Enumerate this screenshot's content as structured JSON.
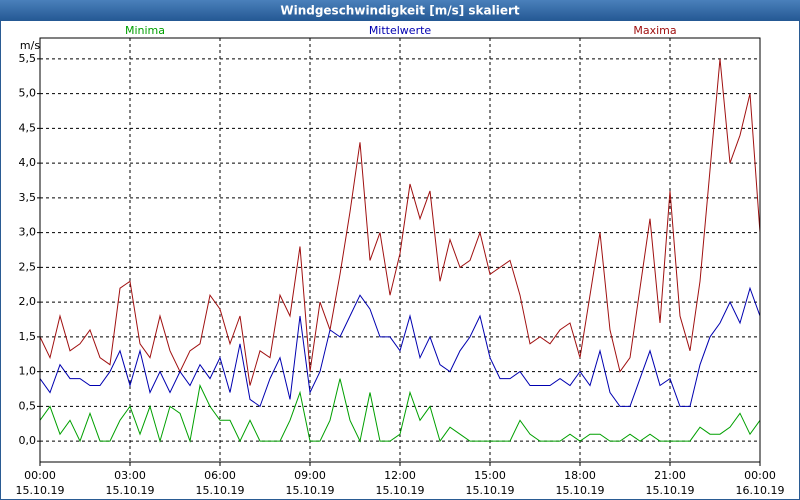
{
  "chart_data": {
    "type": "line",
    "title": "Windgeschwindigkeit [m/s] skaliert",
    "ylabel": "m/s",
    "x": [
      0,
      20,
      40,
      60,
      80,
      100,
      120,
      140,
      160,
      180,
      200,
      220,
      240,
      260,
      280,
      300,
      320,
      340,
      360,
      380,
      400,
      420,
      440,
      460,
      480,
      500,
      520,
      540,
      560,
      580,
      600,
      620,
      640,
      660,
      680,
      700,
      720,
      740,
      760,
      780,
      800,
      820,
      840,
      860,
      880,
      900,
      920,
      940,
      960,
      980,
      1000,
      1020,
      1040,
      1060,
      1080,
      1100,
      1120,
      1140,
      1160,
      1180,
      1200,
      1220,
      1240,
      1260,
      1280,
      1300,
      1320,
      1340,
      1360,
      1380,
      1400,
      1420,
      1440
    ],
    "series": [
      {
        "name": "Minima",
        "color": "#00a000",
        "values": [
          0.3,
          0.5,
          0.1,
          0.3,
          0.0,
          0.4,
          0.0,
          0.0,
          0.3,
          0.5,
          0.1,
          0.5,
          0.0,
          0.5,
          0.4,
          0.0,
          0.8,
          0.5,
          0.3,
          0.3,
          0.0,
          0.3,
          0.0,
          0.0,
          0.0,
          0.3,
          0.7,
          0.0,
          0.0,
          0.3,
          0.9,
          0.3,
          0.0,
          0.7,
          0.0,
          0.0,
          0.1,
          0.7,
          0.3,
          0.5,
          0.0,
          0.2,
          0.1,
          0.0,
          0.0,
          0.0,
          0.0,
          0.0,
          0.3,
          0.1,
          0.0,
          0.0,
          0.0,
          0.1,
          0.0,
          0.1,
          0.1,
          0.0,
          0.0,
          0.1,
          0.0,
          0.1,
          0.0,
          0.0,
          0.0,
          0.0,
          0.2,
          0.1,
          0.1,
          0.2,
          0.4,
          0.1,
          0.3
        ]
      },
      {
        "name": "Mittelwerte",
        "color": "#0000b0",
        "values": [
          0.9,
          0.7,
          1.1,
          0.9,
          0.9,
          0.8,
          0.8,
          1.0,
          1.3,
          0.8,
          1.3,
          0.7,
          1.0,
          0.7,
          1.0,
          0.8,
          1.1,
          0.9,
          1.2,
          0.7,
          1.4,
          0.6,
          0.5,
          0.9,
          1.2,
          0.6,
          1.8,
          0.7,
          1.0,
          1.6,
          1.5,
          1.8,
          2.1,
          1.9,
          1.5,
          1.5,
          1.3,
          1.8,
          1.2,
          1.5,
          1.1,
          1.0,
          1.3,
          1.5,
          1.8,
          1.2,
          0.9,
          0.9,
          1.0,
          0.8,
          0.8,
          0.8,
          0.9,
          0.8,
          1.0,
          0.8,
          1.3,
          0.7,
          0.5,
          0.5,
          0.9,
          1.3,
          0.8,
          0.9,
          0.5,
          0.5,
          1.1,
          1.5,
          1.7,
          2.0,
          1.7,
          2.2,
          1.8
        ]
      },
      {
        "name": "Maxima",
        "color": "#a01010",
        "values": [
          1.5,
          1.2,
          1.8,
          1.3,
          1.4,
          1.6,
          1.2,
          1.1,
          2.2,
          2.3,
          1.4,
          1.2,
          1.8,
          1.3,
          1.0,
          1.3,
          1.4,
          2.1,
          1.9,
          1.4,
          1.8,
          0.8,
          1.3,
          1.2,
          2.1,
          1.8,
          2.8,
          1.0,
          2.0,
          1.6,
          2.4,
          3.3,
          4.3,
          2.6,
          3.0,
          2.1,
          2.7,
          3.7,
          3.2,
          3.6,
          2.3,
          2.9,
          2.5,
          2.6,
          3.0,
          2.4,
          2.5,
          2.6,
          2.1,
          1.4,
          1.5,
          1.4,
          1.6,
          1.7,
          1.2,
          2.1,
          3.0,
          1.6,
          1.0,
          1.2,
          2.2,
          3.2,
          1.7,
          3.6,
          1.8,
          1.3,
          2.3,
          3.9,
          5.5,
          4.0,
          4.4,
          5.0,
          3.0
        ]
      }
    ],
    "xlim": [
      0,
      1440
    ],
    "xticks": [
      {
        "value": 0,
        "label": "00:00",
        "date": "15.10.19"
      },
      {
        "value": 180,
        "label": "03:00",
        "date": "15.10.19"
      },
      {
        "value": 360,
        "label": "06:00",
        "date": "15.10.19"
      },
      {
        "value": 540,
        "label": "09:00",
        "date": "15.10.19"
      },
      {
        "value": 720,
        "label": "12:00",
        "date": "15.10.19"
      },
      {
        "value": 900,
        "label": "15:00",
        "date": "15.10.19"
      },
      {
        "value": 1080,
        "label": "18:00",
        "date": "15.10.19"
      },
      {
        "value": 1260,
        "label": "21:00",
        "date": "15.10.19"
      },
      {
        "value": 1440,
        "label": "00:00",
        "date": "16.10.19"
      }
    ],
    "ylim": [
      -0.3,
      5.8
    ],
    "yticks": [
      {
        "value": 0,
        "label": "0,0"
      },
      {
        "value": 0.5,
        "label": "0,5"
      },
      {
        "value": 1,
        "label": "1,0"
      },
      {
        "value": 1.5,
        "label": "1,5"
      },
      {
        "value": 2,
        "label": "2,0"
      },
      {
        "value": 2.5,
        "label": "2,5"
      },
      {
        "value": 3,
        "label": "3,0"
      },
      {
        "value": 3.5,
        "label": "3,5"
      },
      {
        "value": 4,
        "label": "4,0"
      },
      {
        "value": 4.5,
        "label": "4,5"
      },
      {
        "value": 5,
        "label": "5,0"
      },
      {
        "value": 5.5,
        "label": "5,5"
      }
    ],
    "grid": true
  }
}
